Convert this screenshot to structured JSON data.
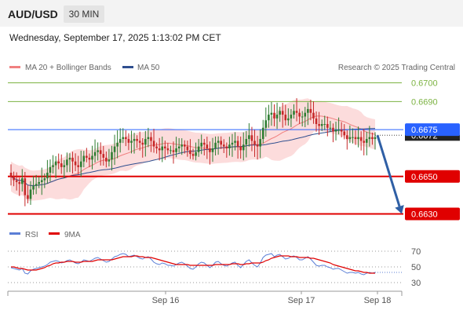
{
  "header": {
    "symbol": "AUD/USD",
    "timeframe": "30 MIN"
  },
  "datetime": "Wednesday, September 17, 2025 1:13:02 PM CET",
  "watermark": "Research © 2025 Trading Central",
  "legend": {
    "bollinger": {
      "label": "MA 20 + Bollinger Bands",
      "color": "#f08080"
    },
    "ma50": {
      "label": "MA 50",
      "color": "#2f4f8f"
    }
  },
  "rsi_legend": {
    "rsi": {
      "label": "RSI",
      "color": "#5b7fd6"
    },
    "ma9": {
      "label": "9MA",
      "color": "#e00000"
    }
  },
  "chart_data": [
    {
      "type": "candlestick",
      "title": "AUD/USD 30 MIN",
      "ylim": [
        0.6626,
        0.6704
      ],
      "x_ticks": [
        "Sep 16",
        "Sep 17",
        "Sep 18"
      ],
      "levels": [
        {
          "label": "0.6700",
          "value": 0.67,
          "color": "#7cb342",
          "style": "line"
        },
        {
          "label": "0.6690",
          "value": 0.669,
          "color": "#7cb342",
          "style": "line"
        },
        {
          "label": "0.6675",
          "value": 0.6675,
          "color": "#2962ff",
          "style": "tag"
        },
        {
          "label": "0.6672",
          "value": 0.6672,
          "color": "#222222",
          "style": "tag-dark"
        },
        {
          "label": "0.6650",
          "value": 0.665,
          "color": "#e00000",
          "style": "tag"
        },
        {
          "label": "0.6630",
          "value": 0.663,
          "color": "#e00000",
          "style": "tag"
        }
      ],
      "colors": {
        "up": "#2e7d32",
        "down": "#c62828",
        "band": "#fbd0d0",
        "arrow": "#2f5fa5"
      },
      "close_series": [
        0.665,
        0.6648,
        0.6647,
        0.6646,
        0.6649,
        0.664,
        0.6638,
        0.6643,
        0.6645,
        0.6646,
        0.6647,
        0.6648,
        0.6649,
        0.6652,
        0.6655,
        0.6656,
        0.6658,
        0.6657,
        0.6655,
        0.6656,
        0.6659,
        0.666,
        0.6658,
        0.6656,
        0.6655,
        0.6658,
        0.6661,
        0.666,
        0.6659,
        0.6661,
        0.6663,
        0.6664,
        0.6662,
        0.666,
        0.6658,
        0.6659,
        0.6663,
        0.6666,
        0.6668,
        0.667,
        0.6671,
        0.667,
        0.6668,
        0.6669,
        0.667,
        0.6669,
        0.6668,
        0.6667,
        0.667,
        0.6671,
        0.6669,
        0.6666,
        0.6665,
        0.6664,
        0.6666,
        0.6665,
        0.6664,
        0.6664,
        0.6663,
        0.6665,
        0.6666,
        0.6667,
        0.6666,
        0.6664,
        0.6662,
        0.6661,
        0.6663,
        0.6666,
        0.6668,
        0.6667,
        0.6665,
        0.6663,
        0.6665,
        0.6668,
        0.6669,
        0.6667,
        0.6666,
        0.6665,
        0.6667,
        0.6668,
        0.6669,
        0.6666,
        0.6664,
        0.6667,
        0.667,
        0.6672,
        0.6669,
        0.6667,
        0.6666,
        0.667,
        0.6676,
        0.668,
        0.6683,
        0.6684,
        0.6681,
        0.6683,
        0.6685,
        0.6683,
        0.668,
        0.6681,
        0.6683,
        0.6685,
        0.6684,
        0.6682,
        0.6682,
        0.6684,
        0.6686,
        0.6684,
        0.6681,
        0.6678,
        0.6677,
        0.6678,
        0.6678,
        0.6676,
        0.6676,
        0.6674,
        0.6675,
        0.6675,
        0.6674,
        0.6672,
        0.667,
        0.6671,
        0.6671,
        0.667,
        0.6671,
        0.6669,
        0.6668,
        0.667,
        0.6671,
        0.667,
        0.6671
      ],
      "forecast_arrow": {
        "from": 0.6672,
        "to": 0.663
      }
    },
    {
      "type": "line",
      "title": "RSI",
      "ylim": [
        22,
        78
      ],
      "y_ticks": [
        70,
        50,
        30
      ],
      "series": [
        {
          "name": "RSI",
          "values": [
            49,
            48,
            47,
            46,
            48,
            42,
            41,
            45,
            47,
            48,
            49,
            50,
            51,
            53,
            56,
            57,
            58,
            57,
            55,
            56,
            58,
            59,
            57,
            55,
            54,
            56,
            59,
            58,
            57,
            59,
            61,
            62,
            60,
            58,
            56,
            57,
            60,
            63,
            64,
            66,
            67,
            66,
            63,
            64,
            65,
            63,
            61,
            60,
            62,
            63,
            60,
            56,
            54,
            53,
            55,
            54,
            52,
            52,
            51,
            53,
            55,
            56,
            54,
            51,
            48,
            47,
            50,
            54,
            56,
            55,
            52,
            49,
            52,
            56,
            57,
            54,
            52,
            51,
            53,
            55,
            56,
            52,
            49,
            53,
            57,
            59,
            55,
            52,
            50,
            55,
            62,
            65,
            66,
            67,
            63,
            65,
            66,
            63,
            60,
            61,
            63,
            64,
            62,
            59,
            59,
            61,
            63,
            60,
            56,
            52,
            51,
            52,
            52,
            50,
            49,
            47,
            48,
            48,
            46,
            44,
            42,
            43,
            43,
            42,
            43,
            41,
            40,
            42,
            43,
            42,
            43
          ]
        },
        {
          "name": "9MA",
          "values": [
            50,
            50,
            49,
            48,
            48,
            47,
            46,
            46,
            46,
            46,
            47,
            48,
            49,
            51,
            52,
            54,
            55,
            55,
            56,
            56,
            57,
            57,
            57,
            56,
            56,
            56,
            57,
            57,
            57,
            57,
            58,
            59,
            59,
            59,
            59,
            59,
            59,
            60,
            61,
            62,
            63,
            63,
            63,
            63,
            64,
            64,
            63,
            63,
            62,
            62,
            62,
            61,
            60,
            59,
            58,
            57,
            56,
            55,
            54,
            53,
            53,
            53,
            53,
            53,
            52,
            52,
            52,
            52,
            52,
            52,
            52,
            52,
            52,
            53,
            53,
            53,
            53,
            53,
            53,
            54,
            54,
            54,
            53,
            53,
            54,
            54,
            55,
            55,
            55,
            55,
            56,
            58,
            59,
            61,
            62,
            63,
            64,
            64,
            64,
            64,
            63,
            63,
            63,
            62,
            62,
            62,
            62,
            61,
            61,
            60,
            59,
            58,
            57,
            56,
            55,
            53,
            52,
            51,
            50,
            49,
            48,
            47,
            46,
            45,
            45,
            44,
            43,
            43,
            42,
            42,
            42
          ]
        }
      ]
    }
  ]
}
